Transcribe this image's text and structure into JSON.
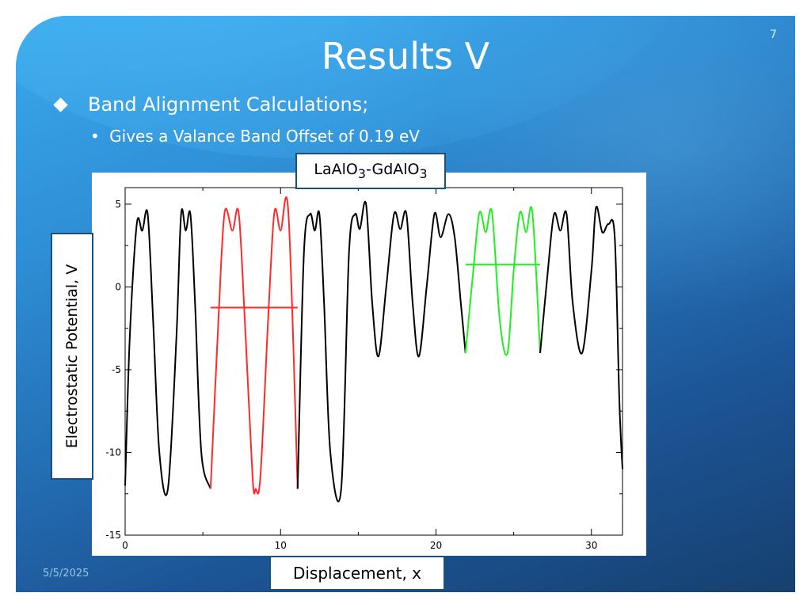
{
  "slide": {
    "title": "Results V",
    "page_number": "7",
    "date": "5/5/2025",
    "bullet_main": "Band Alignment Calculations;",
    "bullet_sub": "Gives a Valance Band Offset of 0.19 eV",
    "bullet_sub_marker": "•",
    "top_label_parts": [
      "LaAlO",
      "3",
      "-GdAlO",
      "3"
    ],
    "y_label": "Electrostatic Potential, V",
    "x_label": "Displacement, x"
  },
  "chart_data": {
    "type": "line",
    "title": "",
    "xlabel": "Displacement, x",
    "ylabel": "Electrostatic Potential, V",
    "xlim": [
      0,
      32
    ],
    "ylim": [
      -15,
      6
    ],
    "x_ticks": [
      0,
      10,
      20,
      30
    ],
    "y_ticks": [
      5,
      0,
      -5,
      -10,
      -15
    ],
    "x_tick_labels": [
      "0",
      "10",
      "20",
      "30"
    ],
    "y_tick_labels": [
      "5",
      "0",
      "-5",
      "-10",
      "-15"
    ],
    "grid": false,
    "series": [
      {
        "color": "#000000",
        "x": [
          0,
          0.3,
          0.75,
          1.1,
          1.45,
          1.8,
          2.2,
          2.75,
          3.3,
          3.6,
          3.9,
          4.2,
          4.5,
          4.9,
          5.5
        ],
        "values": [
          -12.0,
          -3.0,
          3.8,
          3.4,
          4.4,
          -2.0,
          -10.0,
          -12.2,
          -3.0,
          4.4,
          3.4,
          4.4,
          -1.0,
          -10.0,
          -12.2
        ]
      },
      {
        "color": "#ff2a2a",
        "x": [
          5.5,
          6.0,
          6.4,
          6.9,
          7.3,
          7.7,
          8.2,
          8.4,
          8.7,
          9.2,
          9.6,
          10.0,
          10.5,
          11.1
        ],
        "values": [
          -12.2,
          -2.0,
          4.5,
          3.4,
          4.5,
          -2.0,
          -11.5,
          -12.2,
          -11.5,
          -2.0,
          4.5,
          3.4,
          4.5,
          -12.2
        ]
      },
      {
        "color": "#000000",
        "x": [
          11.1,
          11.5,
          11.9,
          12.2,
          12.5,
          12.8,
          13.2,
          13.9,
          14.4,
          14.8,
          15.1,
          15.5,
          15.9,
          16.3,
          16.8,
          17.3,
          17.7,
          18.1,
          18.5,
          18.9,
          19.4,
          19.9,
          20.3,
          20.8,
          21.2,
          21.6,
          21.9
        ],
        "values": [
          -12.2,
          2.0,
          4.4,
          3.4,
          4.4,
          -1.0,
          -10.0,
          -12.2,
          2.0,
          4.4,
          3.5,
          5.0,
          -1.0,
          -4.2,
          0.0,
          4.4,
          3.5,
          4.4,
          -1.0,
          -4.2,
          0.0,
          4.4,
          3.0,
          4.4,
          3.0,
          -1.0,
          -4.0
        ]
      },
      {
        "color": "#22ee22",
        "x": [
          21.9,
          22.4,
          22.8,
          23.2,
          23.6,
          24.1,
          24.6,
          25.0,
          25.4,
          25.8,
          26.2,
          26.7
        ],
        "values": [
          -4.0,
          1.0,
          4.5,
          3.3,
          4.5,
          -2.0,
          -4.0,
          1.0,
          4.5,
          3.3,
          4.5,
          -4.0
        ]
      },
      {
        "color": "#000000",
        "x": [
          26.7,
          27.2,
          27.6,
          28.0,
          28.4,
          28.8,
          29.4,
          30.0,
          30.3,
          30.7,
          31.1,
          31.5,
          31.8,
          32.0
        ],
        "values": [
          -4.0,
          1.0,
          4.4,
          3.4,
          4.4,
          -1.0,
          -4.0,
          1.0,
          4.8,
          3.3,
          3.8,
          3.0,
          -7.0,
          -11.0
        ]
      }
    ],
    "average_lines": [
      {
        "color": "#ff2a2a",
        "x": [
          5.5,
          11.1
        ],
        "y": -1.25
      },
      {
        "color": "#22ee22",
        "x": [
          21.9,
          26.7
        ],
        "y": 1.35
      }
    ]
  }
}
